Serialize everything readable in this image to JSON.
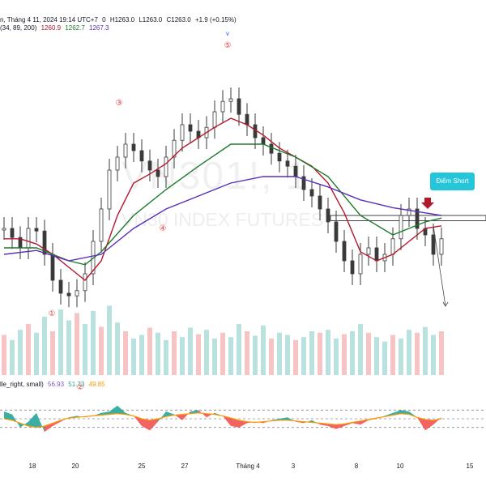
{
  "header": {
    "ohlc": "n, Tháng 4 11, 2024 19:14 UTC+7",
    "open": "0",
    "high": "H1263.0",
    "low": "L1263.0",
    "close": "C1263.0",
    "change": "+1.9 (+0.15%)",
    "ma_params": "(34, 89, 200)",
    "ma_values": [
      "1260.9",
      "1262.7",
      "1267.3"
    ],
    "indicator_name": "lle_right, small)",
    "indicator_values": [
      "56.93",
      "51.73",
      "49.85"
    ]
  },
  "watermark": {
    "symbol": "VN301!, 1",
    "name": "VN30 INDEX FUTURES"
  },
  "annotations": {
    "callout": "Điểm Short",
    "top_marker": "v",
    "wave_labels": [
      "①",
      "②",
      "③",
      "④",
      "⑤"
    ]
  },
  "colors": {
    "up": "#a8d9d4",
    "down": "#f4b5b5",
    "ma34": "#b2182b",
    "ma89": "#1b7a2b",
    "ma200": "#5a2fb8",
    "osc_pos": "#26a69a",
    "osc_neg": "#ef5350",
    "osc_signal": "#ff9800"
  },
  "chart_data": {
    "type": "line",
    "xlabel": "",
    "ylabel": "",
    "x_ticks": [
      "18",
      "20",
      "25",
      "27",
      "Tháng 4",
      "3",
      "8",
      "10",
      "15"
    ],
    "price_series": [
      {
        "name": "price",
        "x": [
          0,
          10,
          20,
          30,
          40,
          50,
          60,
          70,
          80,
          90,
          100,
          110,
          120,
          130,
          140,
          150,
          160,
          170,
          180,
          190,
          200,
          210,
          220,
          230,
          240,
          250,
          260,
          270,
          280,
          290,
          300,
          310,
          320,
          330,
          340,
          350,
          360,
          370,
          380,
          390,
          400,
          410,
          420,
          430,
          440,
          450,
          460,
          470,
          480,
          490,
          500,
          510,
          520,
          530,
          540
        ],
        "y": [
          0.3,
          0.23,
          0.15,
          0.3,
          0.28,
          0.1,
          -0.1,
          -0.2,
          -0.22,
          -0.18,
          -0.05,
          0.2,
          0.45,
          0.75,
          0.85,
          0.95,
          0.9,
          0.82,
          0.75,
          0.7,
          0.85,
          0.98,
          1.1,
          1.05,
          1.0,
          1.08,
          1.2,
          1.28,
          1.3,
          1.18,
          1.1,
          1.0,
          0.95,
          0.88,
          0.82,
          0.78,
          0.7,
          0.6,
          0.55,
          0.45,
          0.35,
          0.2,
          0.05,
          -0.05,
          0.1,
          0.15,
          0.05,
          0.1,
          0.22,
          0.4,
          0.45,
          0.3,
          0.25,
          0.1,
          0.22
        ]
      },
      {
        "name": "MA34",
        "x": [
          0,
          20,
          40,
          60,
          80,
          100,
          120,
          140,
          160,
          180,
          200,
          220,
          240,
          260,
          280,
          300,
          320,
          340,
          360,
          380,
          400,
          420,
          440,
          460,
          480,
          500,
          520,
          540
        ],
        "y": [
          0.22,
          0.22,
          0.18,
          0.1,
          0.0,
          -0.1,
          0.05,
          0.4,
          0.65,
          0.72,
          0.8,
          0.92,
          1.0,
          1.08,
          1.15,
          1.1,
          1.02,
          0.92,
          0.85,
          0.78,
          0.65,
          0.42,
          0.12,
          0.05,
          0.1,
          0.2,
          0.3,
          0.32
        ]
      },
      {
        "name": "MA89",
        "x": [
          0,
          40,
          80,
          100,
          120,
          160,
          200,
          240,
          280,
          320,
          360,
          400,
          440,
          480,
          520,
          540
        ],
        "y": [
          0.15,
          0.15,
          0.05,
          0.02,
          0.12,
          0.4,
          0.6,
          0.78,
          0.95,
          0.95,
          0.85,
          0.7,
          0.4,
          0.25,
          0.35,
          0.38
        ]
      },
      {
        "name": "MA200",
        "x": [
          0,
          40,
          80,
          120,
          160,
          200,
          240,
          280,
          320,
          360,
          400,
          440,
          480,
          520,
          540
        ],
        "y": [
          0.1,
          0.13,
          0.05,
          0.1,
          0.3,
          0.45,
          0.55,
          0.65,
          0.7,
          0.7,
          0.62,
          0.52,
          0.46,
          0.42,
          0.4
        ]
      }
    ],
    "zone": {
      "x": [
        408,
        600
      ],
      "y": [
        0.36,
        0.4
      ]
    },
    "projection": {
      "x": [
        530,
        545
      ],
      "y": [
        0.32,
        -0.3
      ]
    },
    "volume": [
      0.55,
      0.48,
      0.62,
      0.7,
      0.58,
      0.8,
      0.6,
      0.9,
      0.75,
      0.85,
      0.7,
      0.88,
      0.66,
      0.95,
      0.72,
      0.6,
      0.5,
      0.55,
      0.65,
      0.58,
      0.48,
      0.6,
      0.52,
      0.65,
      0.56,
      0.62,
      0.5,
      0.58,
      0.52,
      0.7,
      0.6,
      0.54,
      0.68,
      0.5,
      0.58,
      0.55,
      0.48,
      0.52,
      0.6,
      0.58,
      0.62,
      0.5,
      0.56,
      0.6,
      0.7,
      0.58,
      0.52,
      0.46,
      0.55,
      0.5,
      0.62,
      0.58,
      0.66,
      0.55,
      0.6
    ],
    "oscillator": {
      "x": [
        0,
        10,
        20,
        30,
        40,
        50,
        60,
        70,
        80,
        90,
        100,
        110,
        120,
        130,
        140,
        150,
        160,
        170,
        180,
        190,
        200,
        210,
        220,
        230,
        240,
        250,
        260,
        270,
        280,
        290,
        300,
        310,
        320,
        330,
        340,
        350,
        360,
        370,
        380,
        390,
        400,
        410,
        420,
        430,
        440,
        450,
        460,
        470,
        480,
        490,
        500,
        510,
        520,
        530,
        540
      ],
      "value": [
        0.5,
        0.3,
        -0.6,
        -0.2,
        0.4,
        -0.9,
        -0.5,
        -0.2,
        0.1,
        0.2,
        0.1,
        0.2,
        0.4,
        0.5,
        0.9,
        0.4,
        0.2,
        -0.5,
        -0.8,
        -0.2,
        0.5,
        0.3,
        -0.1,
        0.5,
        0.6,
        0.1,
        0.4,
        0.2,
        -0.5,
        -0.6,
        -0.3,
        -0.2,
        -0.3,
        -0.1,
        0.0,
        0.1,
        -0.2,
        -0.3,
        -0.1,
        -0.4,
        -0.5,
        -0.7,
        -0.5,
        -0.3,
        -0.4,
        -0.1,
        0.0,
        0.2,
        0.4,
        0.6,
        0.5,
        0.1,
        -0.8,
        -0.4,
        0.1
      ],
      "signal": [
        0.0,
        -0.1,
        -0.3,
        -0.5,
        -0.6,
        -0.5,
        -0.3,
        -0.1,
        0.05,
        0.1,
        0.15,
        0.2,
        0.25,
        0.3,
        0.35,
        0.3,
        0.2,
        0.0,
        -0.1,
        0.0,
        0.15,
        0.25,
        0.3,
        0.35,
        0.4,
        0.35,
        0.3,
        0.2,
        0.05,
        -0.1,
        -0.2,
        -0.25,
        -0.2,
        -0.15,
        -0.1,
        -0.1,
        -0.15,
        -0.2,
        -0.25,
        -0.3,
        -0.35,
        -0.4,
        -0.35,
        -0.25,
        -0.15,
        -0.05,
        0.05,
        0.15,
        0.25,
        0.35,
        0.3,
        0.1,
        -0.05,
        -0.1,
        0.0
      ],
      "levels": [
        0.6,
        0.0,
        -0.6
      ]
    }
  }
}
